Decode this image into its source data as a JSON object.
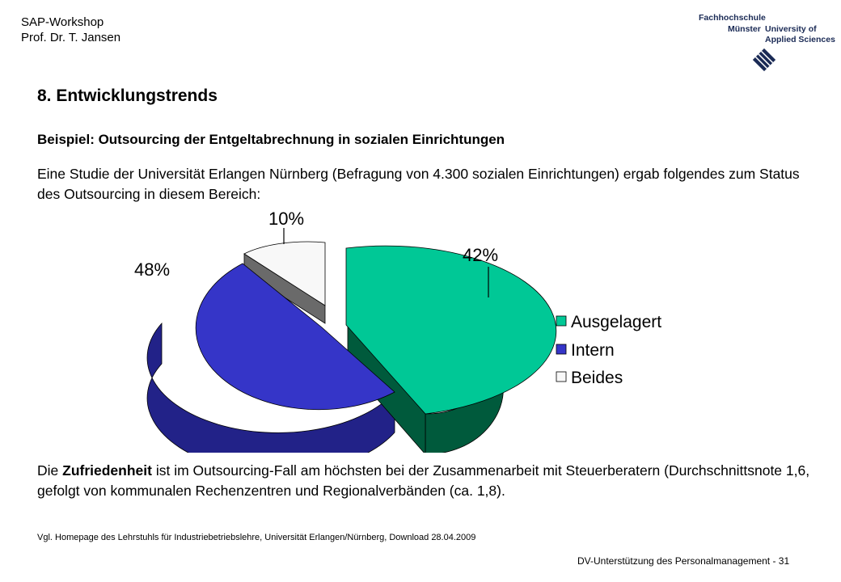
{
  "header": {
    "line1": "SAP-Workshop",
    "line2": "Prof. Dr. T. Jansen"
  },
  "logo": {
    "line1": "Fachhochschule",
    "line2a": "Münster",
    "line2b": "University of",
    "line3": "Applied Sciences"
  },
  "slide": {
    "title": "8. Entwicklungstrends",
    "subtitle": "Beispiel: Outsourcing der Entgeltabrechnung in sozialen Einrichtungen",
    "intro": "Eine Studie der Universität Erlangen Nürnberg (Befragung von 4.300 sozialen Einrichtungen) ergab folgendes zum Status des Outsourcing in diesem Bereich:",
    "conclusion_pre": "Die ",
    "conclusion_bold": "Zufriedenheit",
    "conclusion_post": " ist im Outsourcing-Fall am höchsten bei der Zusammenarbeit mit Steuerberatern (Durchschnittsnote 1,6, gefolgt von kommunalen Rechenzentren und Regionalverbänden (ca. 1,8).",
    "source": "Vgl. Homepage des Lehrstuhls für Industriebetriebslehre, Universität Erlangen/Nürnberg, Download 28.04.2009",
    "footer": "DV-Unterstützung des Personalmanagement - 31"
  },
  "chart_data": {
    "type": "pie",
    "title": "",
    "categories": [
      "Ausgelagert",
      "Intern",
      "Beides"
    ],
    "values": [
      42,
      48,
      10
    ],
    "labels": [
      "42%",
      "48%",
      "10%"
    ],
    "colors": [
      "#00c896",
      "#3535c8",
      "#f8f8f8"
    ],
    "side_colors": [
      "#005a3c",
      "#222288",
      "#6a6a6a"
    ],
    "legend": "right",
    "style": "3d-exploded"
  }
}
